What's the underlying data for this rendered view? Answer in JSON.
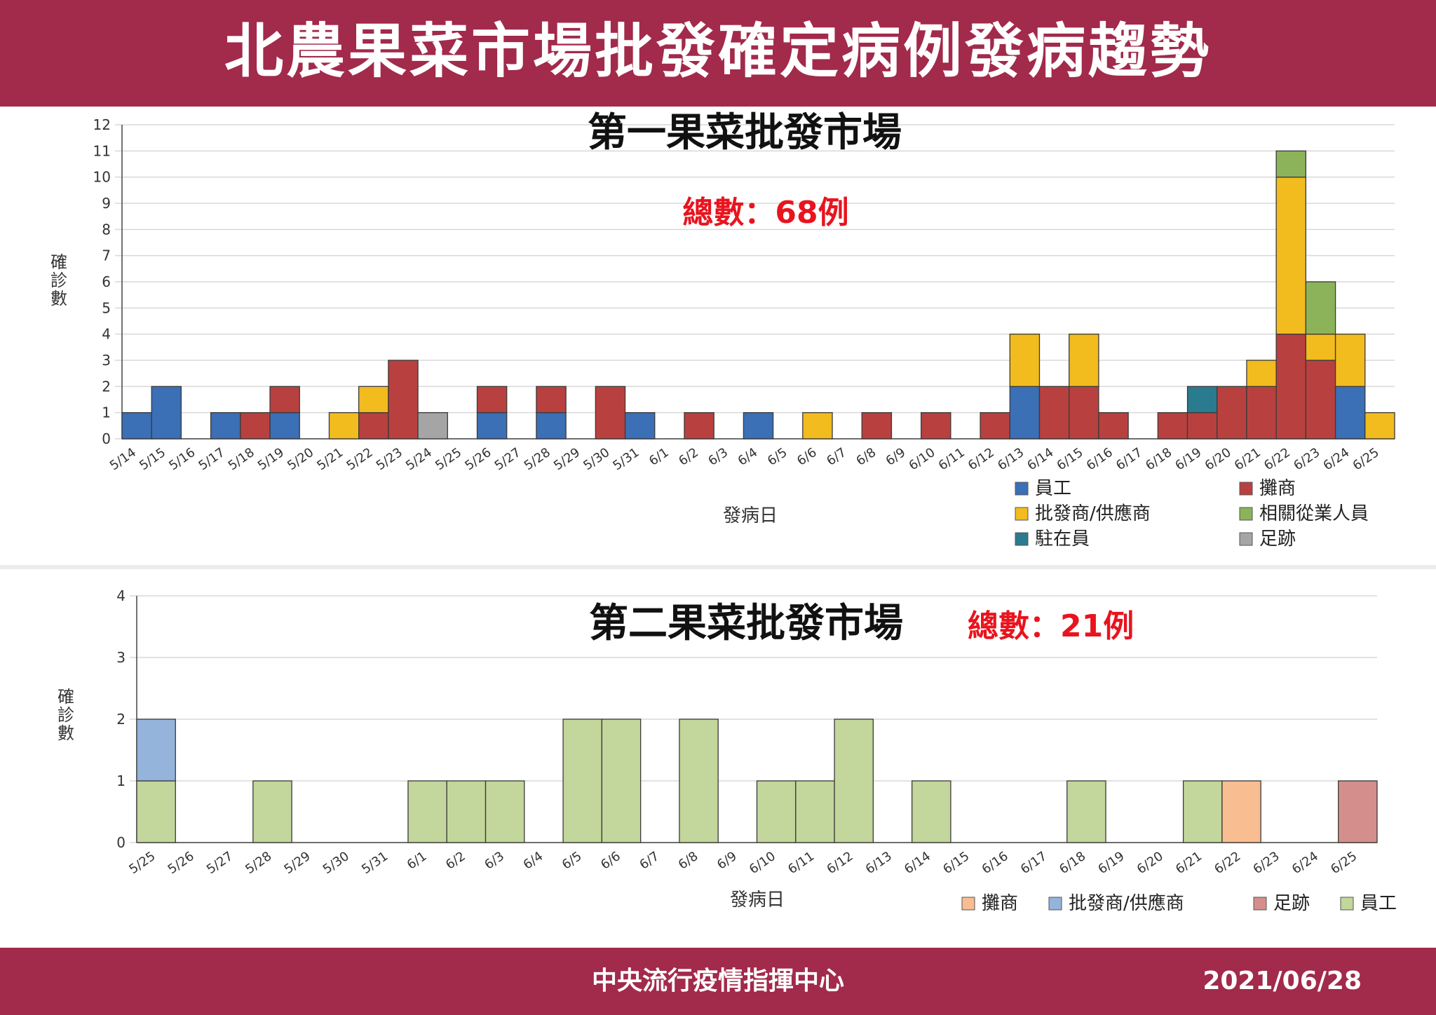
{
  "header": {
    "title": "北農果菜市場批發確定病例發病趨勢"
  },
  "footer": {
    "org": "中央流行疫情指揮中心",
    "date": "2021/06/28"
  },
  "chart_data": [
    {
      "type": "bar",
      "stacked": true,
      "title": "第一果菜批發市場",
      "subtitle": "總數：68例",
      "xlabel": "發病日",
      "ylabel": "確診數",
      "ylim": [
        0,
        12
      ],
      "yticks": [
        0,
        1,
        2,
        3,
        4,
        5,
        6,
        7,
        8,
        9,
        10,
        11,
        12
      ],
      "grid": true,
      "legend_position": "bottom-right",
      "categories": [
        "5/14",
        "5/15",
        "5/16",
        "5/17",
        "5/18",
        "5/19",
        "5/20",
        "5/21",
        "5/22",
        "5/23",
        "5/24",
        "5/25",
        "5/26",
        "5/27",
        "5/28",
        "5/29",
        "5/30",
        "5/31",
        "6/1",
        "6/2",
        "6/3",
        "6/4",
        "6/5",
        "6/6",
        "6/7",
        "6/8",
        "6/9",
        "6/10",
        "6/11",
        "6/12",
        "6/13",
        "6/14",
        "6/15",
        "6/16",
        "6/17",
        "6/18",
        "6/19",
        "6/20",
        "6/21",
        "6/22",
        "6/23",
        "6/24",
        "6/25"
      ],
      "series": [
        {
          "name": "員工",
          "color": "#3b6fb6",
          "values": [
            1,
            2,
            0,
            1,
            0,
            1,
            0,
            0,
            0,
            0,
            0,
            0,
            1,
            0,
            1,
            0,
            0,
            1,
            0,
            0,
            0,
            1,
            0,
            0,
            0,
            0,
            0,
            0,
            0,
            0,
            2,
            0,
            0,
            0,
            0,
            0,
            0,
            0,
            0,
            0,
            0,
            2,
            0
          ]
        },
        {
          "name": "攤商",
          "color": "#b8413f",
          "values": [
            0,
            0,
            0,
            0,
            1,
            1,
            0,
            0,
            1,
            3,
            0,
            0,
            1,
            0,
            1,
            0,
            2,
            0,
            0,
            1,
            0,
            0,
            0,
            0,
            0,
            1,
            0,
            1,
            0,
            1,
            0,
            2,
            2,
            1,
            0,
            1,
            1,
            2,
            2,
            4,
            3,
            0,
            0
          ]
        },
        {
          "name": "批發商/供應商",
          "color": "#f2bb1e",
          "values": [
            0,
            0,
            0,
            0,
            0,
            0,
            0,
            1,
            1,
            0,
            0,
            0,
            0,
            0,
            0,
            0,
            0,
            0,
            0,
            0,
            0,
            0,
            0,
            1,
            0,
            0,
            0,
            0,
            0,
            0,
            2,
            0,
            2,
            0,
            0,
            0,
            0,
            0,
            1,
            6,
            1,
            2,
            1
          ]
        },
        {
          "name": "相關從業人員",
          "color": "#8cb35a",
          "values": [
            0,
            0,
            0,
            0,
            0,
            0,
            0,
            0,
            0,
            0,
            0,
            0,
            0,
            0,
            0,
            0,
            0,
            0,
            0,
            0,
            0,
            0,
            0,
            0,
            0,
            0,
            0,
            0,
            0,
            0,
            0,
            0,
            0,
            0,
            0,
            0,
            0,
            0,
            0,
            1,
            2,
            0,
            0
          ]
        },
        {
          "name": "駐在員",
          "color": "#2a7b8f",
          "values": [
            0,
            0,
            0,
            0,
            0,
            0,
            0,
            0,
            0,
            0,
            0,
            0,
            0,
            0,
            0,
            0,
            0,
            0,
            0,
            0,
            0,
            0,
            0,
            0,
            0,
            0,
            0,
            0,
            0,
            0,
            0,
            0,
            0,
            0,
            0,
            0,
            1,
            0,
            0,
            0,
            0,
            0,
            0
          ]
        },
        {
          "name": "足跡",
          "color": "#a5a5a5",
          "values": [
            0,
            0,
            0,
            0,
            0,
            0,
            0,
            0,
            0,
            0,
            1,
            0,
            0,
            0,
            0,
            0,
            0,
            0,
            0,
            0,
            0,
            0,
            0,
            0,
            0,
            0,
            0,
            0,
            0,
            0,
            0,
            0,
            0,
            0,
            0,
            0,
            0,
            0,
            0,
            0,
            0,
            0,
            0
          ]
        }
      ]
    },
    {
      "type": "bar",
      "stacked": true,
      "title": "第二果菜批發市場",
      "subtitle": "總數：21例",
      "xlabel": "發病日",
      "ylabel": "確診數",
      "ylim": [
        0,
        4
      ],
      "yticks": [
        0,
        1,
        2,
        3,
        4
      ],
      "grid": true,
      "legend_position": "bottom-right",
      "categories": [
        "5/25",
        "5/26",
        "5/27",
        "5/28",
        "5/29",
        "5/30",
        "5/31",
        "6/1",
        "6/2",
        "6/3",
        "6/4",
        "6/5",
        "6/6",
        "6/7",
        "6/8",
        "6/9",
        "6/10",
        "6/11",
        "6/12",
        "6/13",
        "6/14",
        "6/15",
        "6/16",
        "6/17",
        "6/18",
        "6/19",
        "6/20",
        "6/21",
        "6/22",
        "6/23",
        "6/24",
        "6/25"
      ],
      "series": [
        {
          "name": "攤商",
          "color": "#f8bd91",
          "values": [
            0,
            0,
            0,
            0,
            0,
            0,
            0,
            0,
            0,
            0,
            0,
            0,
            0,
            0,
            0,
            0,
            0,
            0,
            0,
            0,
            0,
            0,
            0,
            0,
            0,
            0,
            0,
            0,
            1,
            0,
            0,
            0
          ]
        },
        {
          "name": "批發商/供應商",
          "color": "#94b4dc",
          "values": [
            1,
            0,
            0,
            0,
            0,
            0,
            0,
            0,
            0,
            0,
            0,
            0,
            0,
            0,
            0,
            0,
            0,
            0,
            0,
            0,
            0,
            0,
            0,
            0,
            0,
            0,
            0,
            0,
            0,
            0,
            0,
            0
          ]
        },
        {
          "name": "足跡",
          "color": "#d48f8d",
          "values": [
            0,
            0,
            0,
            0,
            0,
            0,
            0,
            0,
            0,
            0,
            0,
            0,
            0,
            0,
            0,
            0,
            0,
            0,
            0,
            0,
            0,
            0,
            0,
            0,
            0,
            0,
            0,
            0,
            0,
            0,
            0,
            1
          ]
        },
        {
          "name": "員工",
          "color": "#c3d69b",
          "values": [
            1,
            0,
            0,
            1,
            0,
            0,
            0,
            1,
            1,
            1,
            0,
            2,
            2,
            0,
            2,
            0,
            1,
            1,
            2,
            0,
            1,
            0,
            0,
            0,
            1,
            0,
            0,
            1,
            0,
            0,
            0,
            0
          ]
        }
      ],
      "stack_order": [
        "員工",
        "批發商/供應商",
        "攤商",
        "足跡"
      ]
    }
  ]
}
